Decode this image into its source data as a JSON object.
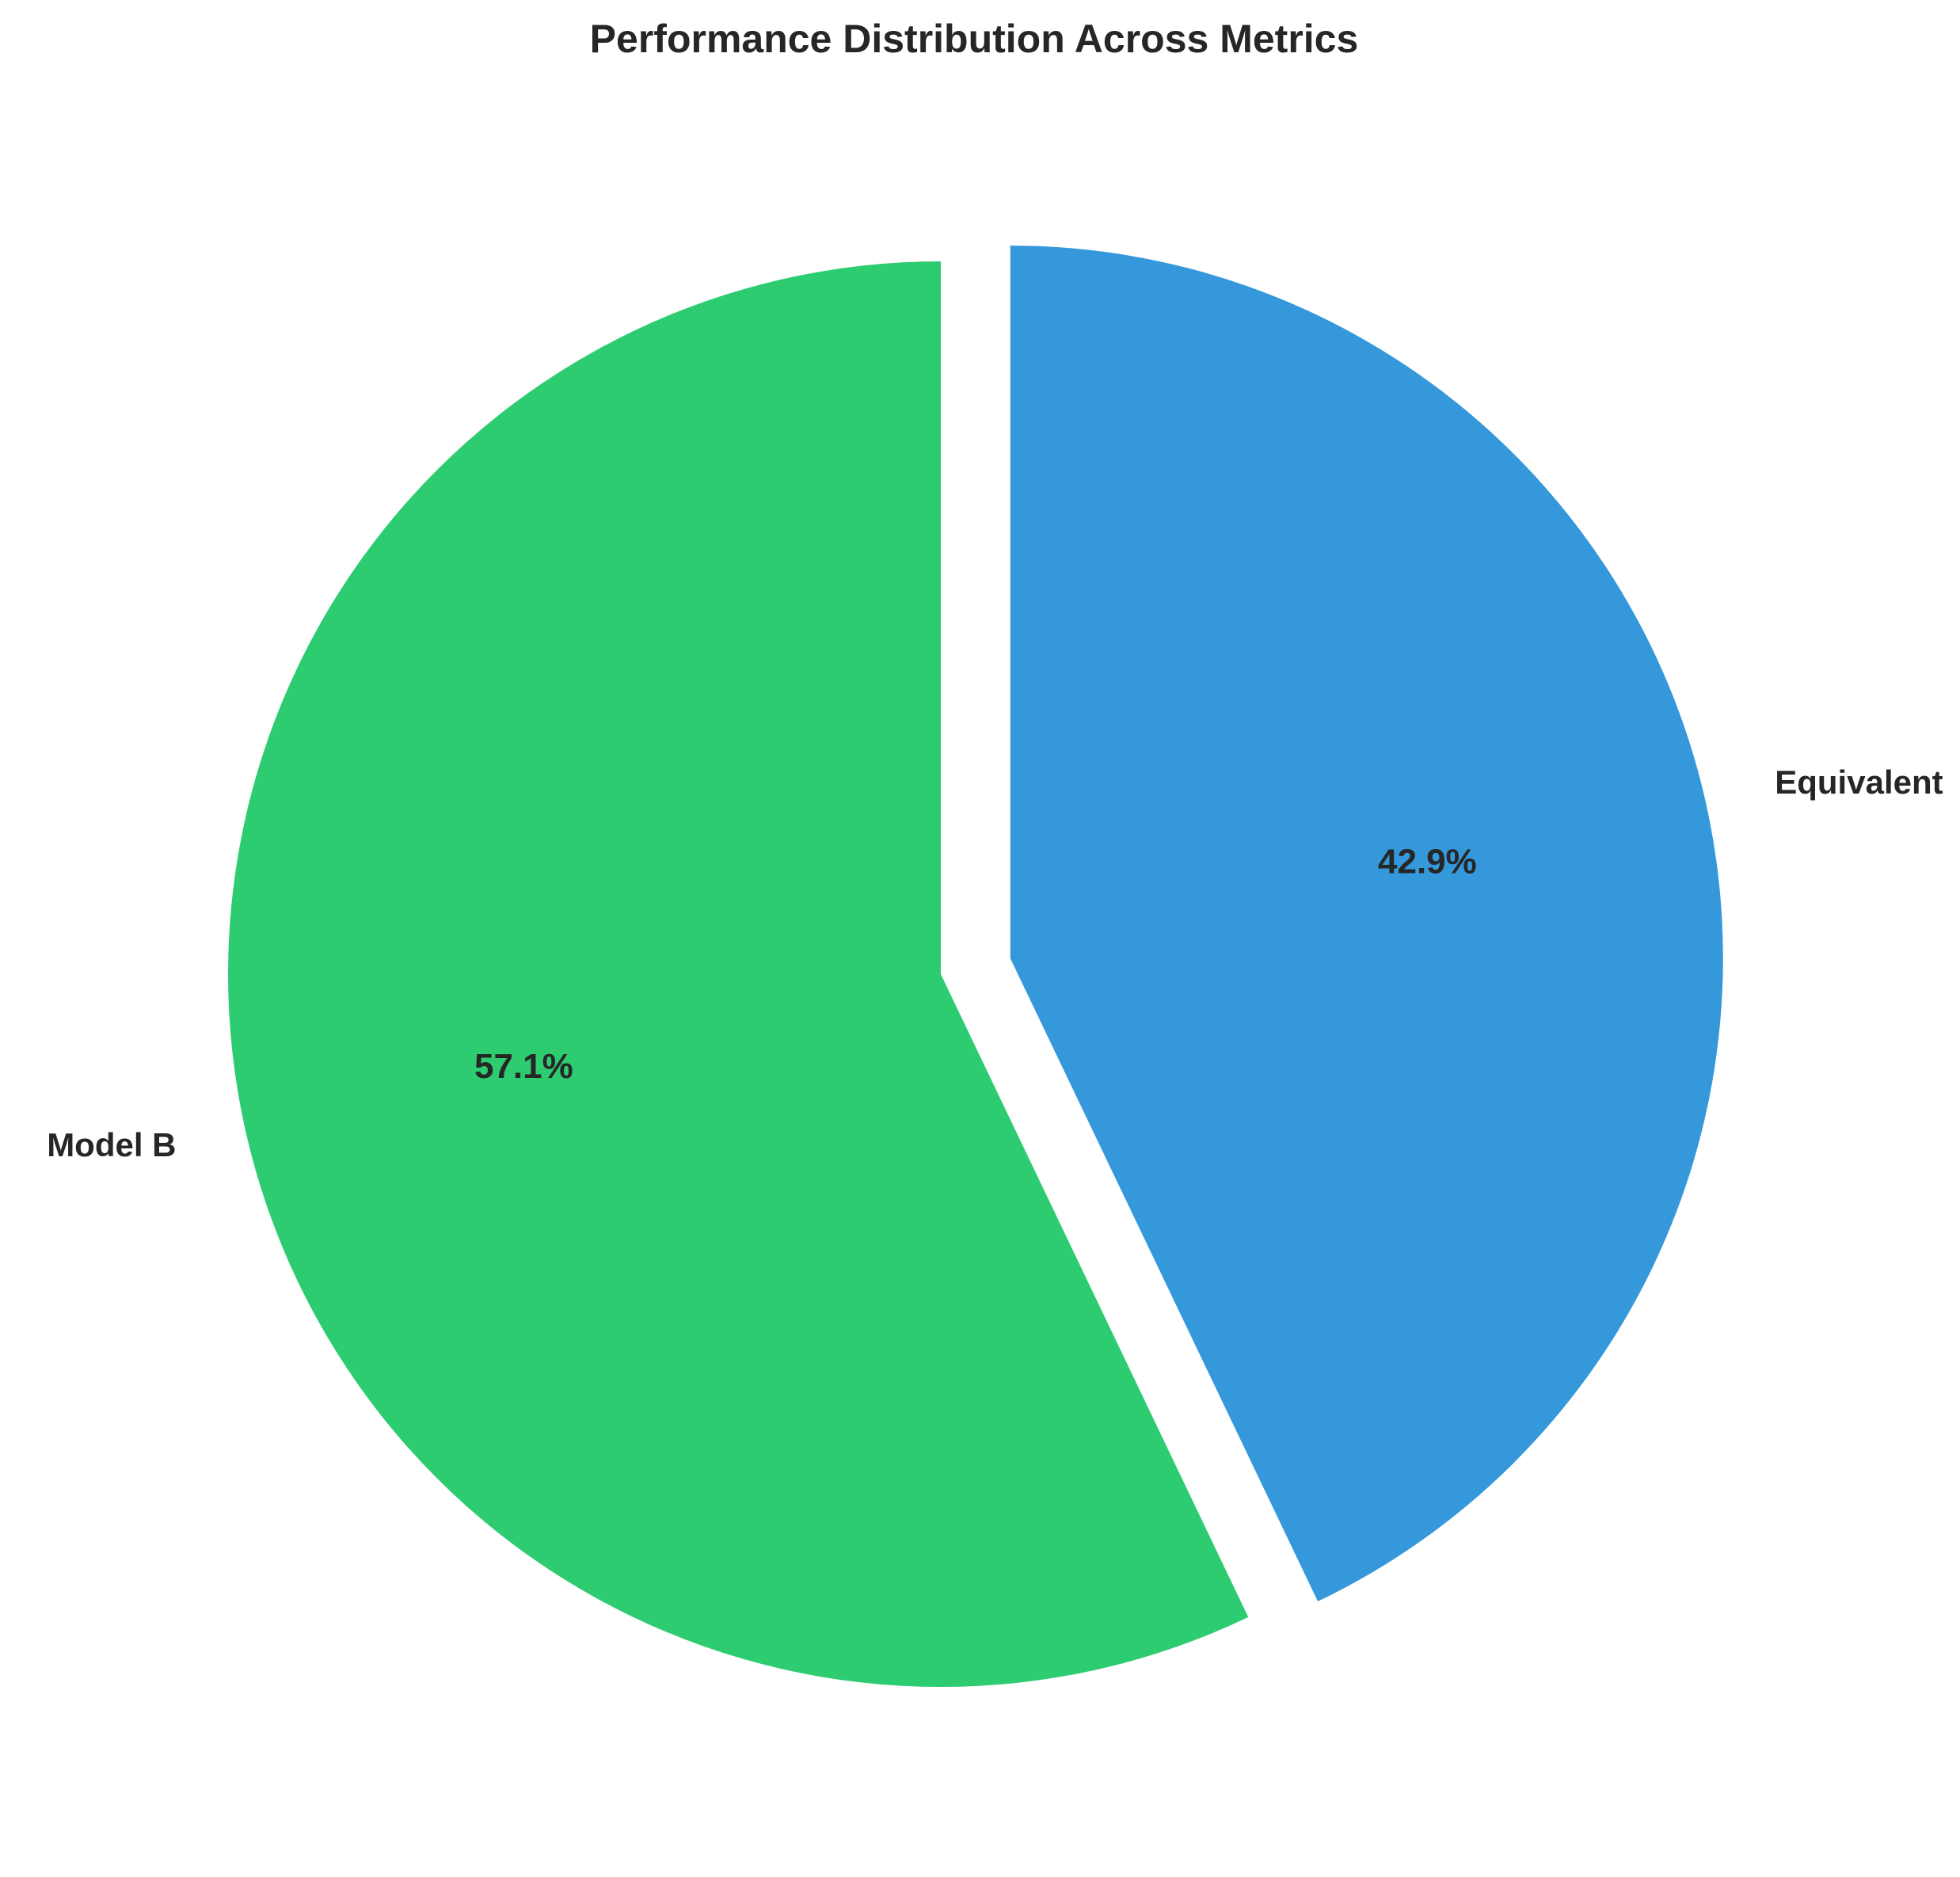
{
  "chart_data": {
    "type": "pie",
    "title": "Performance Distribution Across Metrics",
    "start_angle": "top, counter-clockwise",
    "explode": [
      "Equivalent"
    ],
    "slices": [
      {
        "label": "Model B",
        "percent": 57.1,
        "pct_label": "57.1%",
        "color": "#2ecc71"
      },
      {
        "label": "Equivalent",
        "percent": 42.9,
        "pct_label": "42.9%",
        "color": "#3498db"
      }
    ]
  }
}
